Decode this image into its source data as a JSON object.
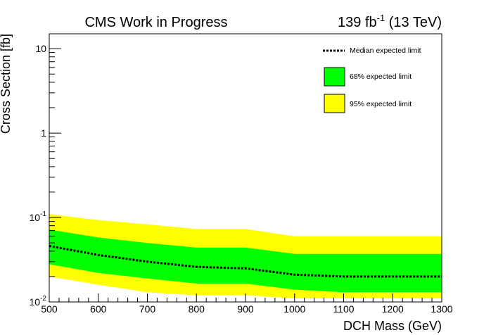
{
  "header": {
    "title": "CMS Work in Progress",
    "lumi_value": "139 fb",
    "lumi_exponent": "-1",
    "lumi_energy": "(13 TeV)"
  },
  "chart_data": {
    "type": "area",
    "xlabel": "DCH Mass (GeV)",
    "ylabel": "Cross Section [fb]",
    "xlim": [
      500,
      1300
    ],
    "ylim": [
      0.01,
      15
    ],
    "yscale": "log",
    "x_ticks": [
      500,
      600,
      700,
      800,
      900,
      1000,
      1100,
      1200,
      1300
    ],
    "y_ticks": [
      {
        "value": 0.01,
        "base": "10",
        "exp": "-2"
      },
      {
        "value": 0.1,
        "base": "10",
        "exp": "-1"
      },
      {
        "value": 1,
        "base": "1",
        "exp": ""
      },
      {
        "value": 10,
        "base": "10",
        "exp": ""
      }
    ],
    "grid": false,
    "legend_position": "top-right",
    "x": [
      500,
      600,
      700,
      800,
      900,
      1000,
      1100,
      1200,
      1300
    ],
    "series": [
      {
        "name": "95% expected limit",
        "kind": "band",
        "color": "#ffff00",
        "low": [
          0.02,
          0.016,
          0.013,
          0.012,
          0.012,
          0.011,
          0.011,
          0.011,
          0.011
        ],
        "high": [
          0.11,
          0.093,
          0.083,
          0.073,
          0.073,
          0.06,
          0.06,
          0.06,
          0.06
        ]
      },
      {
        "name": "68% expected limit",
        "kind": "band",
        "color": "#00ff00",
        "low": [
          0.028,
          0.022,
          0.019,
          0.0165,
          0.0165,
          0.014,
          0.013,
          0.013,
          0.013
        ],
        "high": [
          0.072,
          0.058,
          0.05,
          0.044,
          0.044,
          0.037,
          0.037,
          0.037,
          0.037
        ]
      },
      {
        "name": "Median expected limit",
        "kind": "line",
        "color": "#000000",
        "values": [
          0.046,
          0.036,
          0.03,
          0.026,
          0.025,
          0.021,
          0.02,
          0.02,
          0.02
        ]
      }
    ]
  }
}
